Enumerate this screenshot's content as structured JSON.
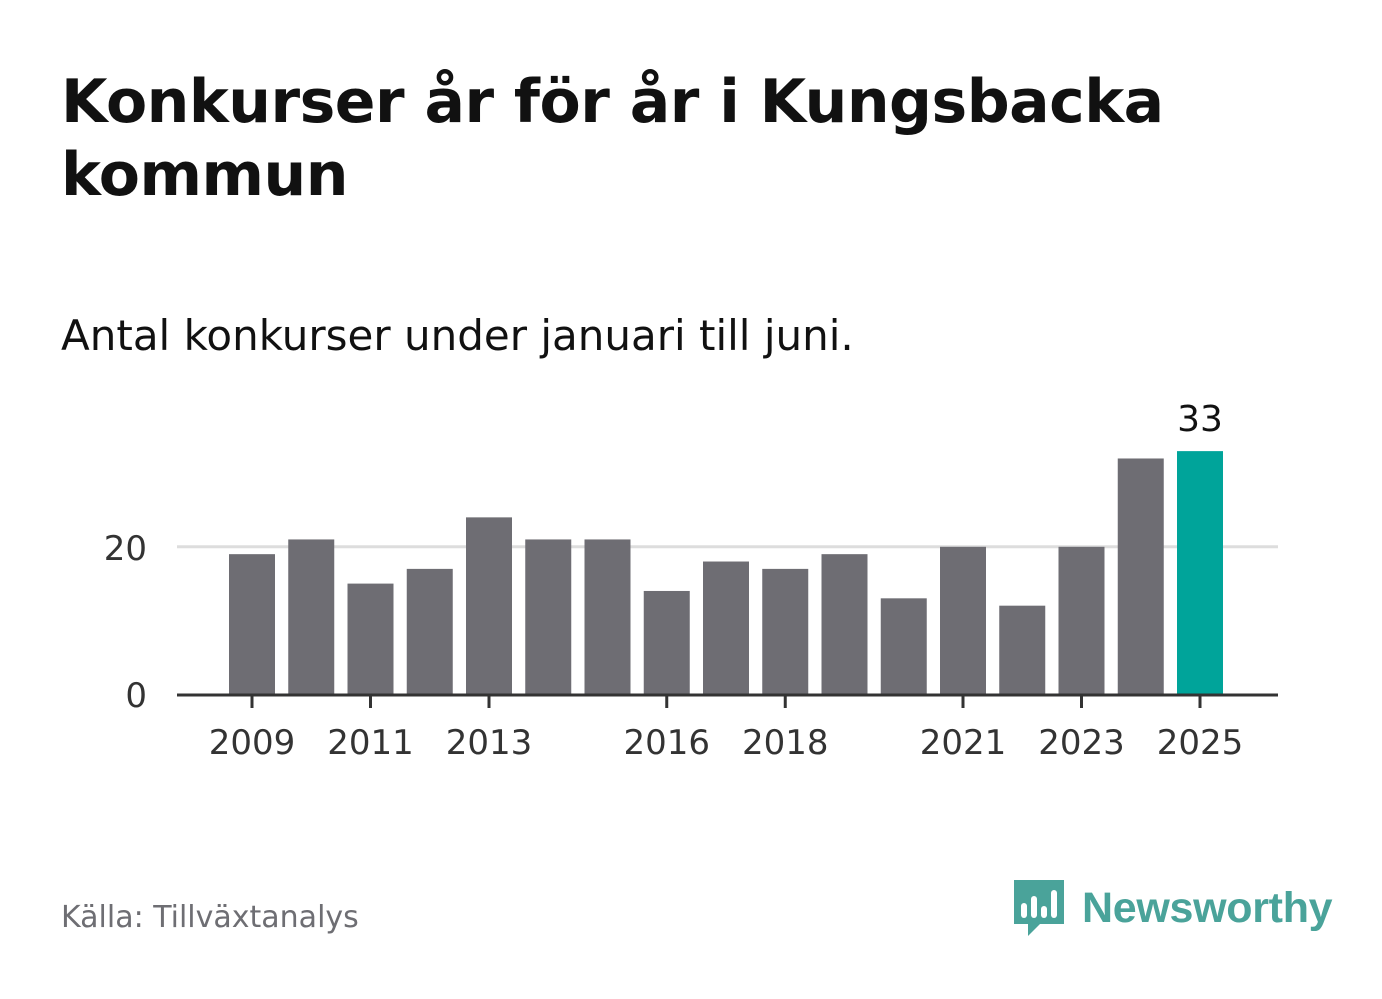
{
  "header": {
    "title": "Konkurser år för år i Kungsbacka kommun",
    "subtitle": "Antal konkurser under januari till juni."
  },
  "footer": {
    "source": "Källa: Tillväxtanalys",
    "brand": "Newsworthy"
  },
  "colors": {
    "bar": "#6e6d73",
    "highlight": "#00a49a",
    "gridline": "#dddddd",
    "axis": "#333333",
    "brand": "#4aa39a"
  },
  "icons": {
    "brand_logo": "bar-chart-speech-bubble-icon"
  },
  "chart_data": {
    "type": "bar",
    "categories": [
      "2009",
      "2010",
      "2011",
      "2012",
      "2013",
      "2014",
      "2015",
      "2016",
      "2017",
      "2018",
      "2019",
      "2020",
      "2021",
      "2022",
      "2023",
      "2024",
      "2025"
    ],
    "values": [
      19,
      21,
      15,
      17,
      24,
      21,
      21,
      14,
      18,
      17,
      19,
      13,
      20,
      12,
      20,
      32,
      33
    ],
    "x_tick_labels": [
      "2009",
      "2011",
      "2013",
      "2016",
      "2018",
      "2021",
      "2023",
      "2025"
    ],
    "y_ticks": [
      0,
      20
    ],
    "ylim": [
      0,
      33
    ],
    "highlight_category": "2025",
    "data_labels": [
      {
        "category": "2025",
        "text": "33"
      }
    ],
    "grid": "horizontal",
    "title": "Konkurser år för år i Kungsbacka kommun",
    "subtitle": "Antal konkurser under januari till juni.",
    "xlabel": "",
    "ylabel": ""
  }
}
